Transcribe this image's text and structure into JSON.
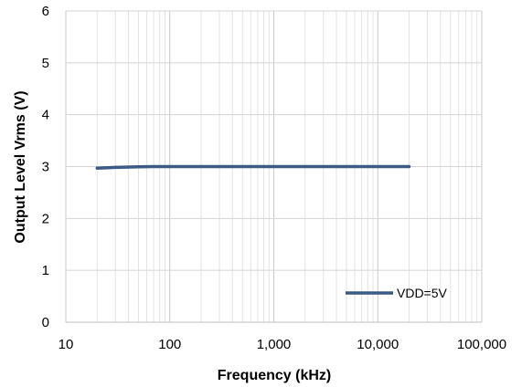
{
  "chart_data": {
    "type": "line",
    "title": "",
    "xlabel": "Frequency (kHz)",
    "ylabel": "Output Level Vrms (V)",
    "x_scale": "log",
    "xlim": [
      10,
      100000
    ],
    "ylim": [
      0,
      6
    ],
    "x_ticks": [
      10,
      100,
      1000,
      10000,
      100000
    ],
    "x_tick_labels": [
      "10",
      "100",
      "1,000",
      "10,000",
      "100,000"
    ],
    "y_ticks": [
      0,
      1,
      2,
      3,
      4,
      5,
      6
    ],
    "y_tick_labels": [
      "0",
      "1",
      "2",
      "3",
      "4",
      "5",
      "6"
    ],
    "grid": {
      "major": true,
      "minor_x": true
    },
    "legend_position": "bottom-right",
    "series": [
      {
        "name": "VDD=5V",
        "color": "#3B5B86",
        "x": [
          20,
          30,
          50,
          70,
          100,
          200,
          500,
          1000,
          2000,
          5000,
          10000,
          20000
        ],
        "y": [
          2.97,
          2.985,
          2.995,
          3.0,
          3.0,
          3.0,
          3.0,
          3.0,
          3.0,
          3.0,
          3.0,
          3.0
        ]
      }
    ]
  }
}
